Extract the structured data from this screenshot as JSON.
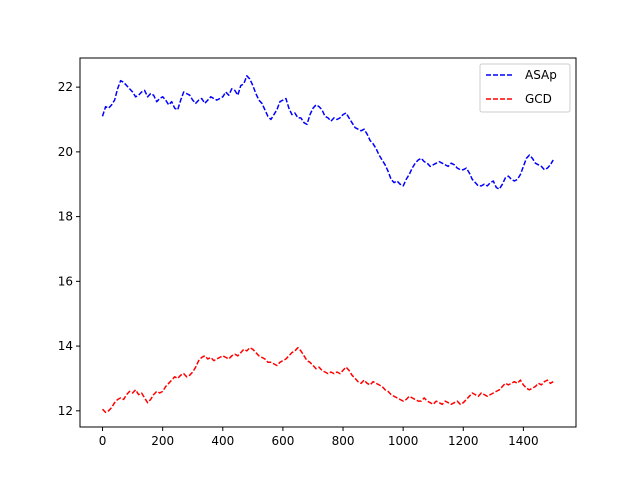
{
  "chart_data": {
    "type": "line",
    "title": "",
    "xlabel": "",
    "ylabel": "",
    "xlim": [
      -75,
      1575
    ],
    "ylim": [
      11.5,
      22.9
    ],
    "x_ticks": [
      0,
      200,
      400,
      600,
      800,
      1000,
      1200,
      1400
    ],
    "y_ticks": [
      12,
      14,
      16,
      18,
      20,
      22
    ],
    "grid": false,
    "legend": "top-right",
    "series": [
      {
        "name": "ASAp",
        "color": "#0000ff",
        "linestyle": "dashed",
        "x": [
          0,
          10,
          20,
          30,
          40,
          50,
          60,
          70,
          80,
          90,
          100,
          110,
          120,
          130,
          140,
          150,
          160,
          170,
          180,
          190,
          200,
          210,
          220,
          230,
          240,
          250,
          260,
          270,
          280,
          290,
          300,
          310,
          320,
          330,
          340,
          350,
          360,
          370,
          380,
          390,
          400,
          410,
          420,
          430,
          440,
          450,
          460,
          470,
          480,
          490,
          500,
          510,
          520,
          530,
          540,
          550,
          560,
          570,
          580,
          590,
          600,
          610,
          620,
          630,
          640,
          650,
          660,
          670,
          680,
          690,
          700,
          710,
          720,
          730,
          740,
          750,
          760,
          770,
          780,
          790,
          800,
          810,
          820,
          830,
          840,
          850,
          860,
          870,
          880,
          890,
          900,
          910,
          920,
          930,
          940,
          950,
          960,
          970,
          980,
          990,
          1000,
          1010,
          1020,
          1030,
          1040,
          1050,
          1060,
          1070,
          1080,
          1090,
          1100,
          1110,
          1120,
          1130,
          1140,
          1150,
          1160,
          1170,
          1180,
          1190,
          1200,
          1210,
          1220,
          1230,
          1240,
          1250,
          1260,
          1270,
          1280,
          1290,
          1300,
          1310,
          1320,
          1330,
          1340,
          1350,
          1360,
          1370,
          1380,
          1390,
          1400,
          1410,
          1420,
          1430,
          1440,
          1450,
          1460,
          1470,
          1480,
          1490,
          1499
        ],
        "values": [
          21.1,
          21.4,
          21.35,
          21.45,
          21.6,
          21.95,
          22.2,
          22.15,
          22.05,
          21.95,
          21.85,
          21.7,
          21.75,
          21.85,
          21.9,
          21.7,
          21.8,
          21.75,
          21.55,
          21.65,
          21.7,
          21.6,
          21.45,
          21.55,
          21.35,
          21.3,
          21.6,
          21.85,
          21.8,
          21.75,
          21.6,
          21.5,
          21.6,
          21.65,
          21.5,
          21.6,
          21.7,
          21.65,
          21.6,
          21.65,
          21.7,
          21.85,
          21.75,
          21.95,
          21.9,
          21.75,
          22.05,
          22.1,
          22.35,
          22.25,
          22.05,
          21.8,
          21.6,
          21.5,
          21.3,
          21.1,
          21.0,
          21.15,
          21.3,
          21.55,
          21.6,
          21.65,
          21.35,
          21.15,
          21.2,
          21.05,
          21.05,
          20.9,
          20.85,
          21.15,
          21.35,
          21.45,
          21.4,
          21.3,
          21.1,
          21.05,
          20.95,
          21.05,
          21.0,
          21.05,
          21.15,
          21.2,
          21.05,
          20.9,
          20.75,
          20.7,
          20.65,
          20.7,
          20.55,
          20.35,
          20.25,
          20.1,
          19.9,
          19.75,
          19.6,
          19.4,
          19.15,
          19.05,
          19.1,
          19.0,
          18.95,
          19.15,
          19.3,
          19.5,
          19.65,
          19.75,
          19.8,
          19.7,
          19.65,
          19.55,
          19.6,
          19.65,
          19.7,
          19.65,
          19.6,
          19.55,
          19.65,
          19.6,
          19.5,
          19.45,
          19.45,
          19.5,
          19.35,
          19.15,
          19.05,
          18.95,
          18.95,
          19.0,
          18.95,
          19.05,
          19.1,
          18.9,
          18.85,
          19.0,
          19.2,
          19.25,
          19.15,
          19.1,
          19.15,
          19.3,
          19.55,
          19.8,
          19.9,
          19.8,
          19.65,
          19.6,
          19.55,
          19.45,
          19.5,
          19.6,
          19.75
        ]
      },
      {
        "name": "GCD",
        "color": "#ff0000",
        "linestyle": "dashed",
        "x": [
          0,
          10,
          20,
          30,
          40,
          50,
          60,
          70,
          80,
          90,
          100,
          110,
          120,
          130,
          140,
          150,
          160,
          170,
          180,
          190,
          200,
          210,
          220,
          230,
          240,
          250,
          260,
          270,
          280,
          290,
          300,
          310,
          320,
          330,
          340,
          350,
          360,
          370,
          380,
          390,
          400,
          410,
          420,
          430,
          440,
          450,
          460,
          470,
          480,
          490,
          500,
          510,
          520,
          530,
          540,
          550,
          560,
          570,
          580,
          590,
          600,
          610,
          620,
          630,
          640,
          650,
          660,
          670,
          680,
          690,
          700,
          710,
          720,
          730,
          740,
          750,
          760,
          770,
          780,
          790,
          800,
          810,
          820,
          830,
          840,
          850,
          860,
          870,
          880,
          890,
          900,
          910,
          920,
          930,
          940,
          950,
          960,
          970,
          980,
          990,
          1000,
          1010,
          1020,
          1030,
          1040,
          1050,
          1060,
          1070,
          1080,
          1090,
          1100,
          1110,
          1120,
          1130,
          1140,
          1150,
          1160,
          1170,
          1180,
          1190,
          1200,
          1210,
          1220,
          1230,
          1240,
          1250,
          1260,
          1270,
          1280,
          1290,
          1300,
          1310,
          1320,
          1330,
          1340,
          1350,
          1360,
          1370,
          1380,
          1390,
          1400,
          1410,
          1420,
          1430,
          1440,
          1450,
          1460,
          1470,
          1480,
          1490,
          1499
        ],
        "values": [
          12.05,
          11.95,
          12.0,
          12.1,
          12.25,
          12.35,
          12.4,
          12.35,
          12.5,
          12.6,
          12.55,
          12.65,
          12.5,
          12.55,
          12.4,
          12.25,
          12.35,
          12.5,
          12.6,
          12.55,
          12.6,
          12.75,
          12.85,
          12.95,
          13.05,
          13.0,
          13.1,
          13.15,
          13.05,
          13.1,
          13.2,
          13.35,
          13.55,
          13.65,
          13.7,
          13.6,
          13.65,
          13.55,
          13.6,
          13.65,
          13.7,
          13.65,
          13.6,
          13.7,
          13.75,
          13.7,
          13.8,
          13.9,
          13.85,
          13.95,
          13.9,
          13.8,
          13.7,
          13.65,
          13.6,
          13.5,
          13.5,
          13.45,
          13.4,
          13.5,
          13.55,
          13.6,
          13.7,
          13.8,
          13.85,
          13.95,
          13.85,
          13.7,
          13.55,
          13.5,
          13.4,
          13.3,
          13.35,
          13.25,
          13.2,
          13.15,
          13.2,
          13.15,
          13.2,
          13.15,
          13.25,
          13.35,
          13.25,
          13.1,
          13.0,
          12.9,
          12.85,
          12.95,
          12.85,
          12.8,
          12.9,
          12.85,
          12.8,
          12.75,
          12.65,
          12.6,
          12.5,
          12.45,
          12.4,
          12.35,
          12.3,
          12.35,
          12.45,
          12.4,
          12.35,
          12.3,
          12.3,
          12.4,
          12.3,
          12.25,
          12.2,
          12.3,
          12.25,
          12.2,
          12.3,
          12.25,
          12.2,
          12.25,
          12.3,
          12.2,
          12.25,
          12.35,
          12.45,
          12.55,
          12.5,
          12.45,
          12.55,
          12.5,
          12.45,
          12.5,
          12.55,
          12.6,
          12.65,
          12.75,
          12.85,
          12.8,
          12.85,
          12.9,
          12.85,
          12.95,
          12.8,
          12.7,
          12.65,
          12.7,
          12.75,
          12.85,
          12.8,
          12.9,
          12.95,
          12.85,
          12.9
        ]
      }
    ]
  }
}
